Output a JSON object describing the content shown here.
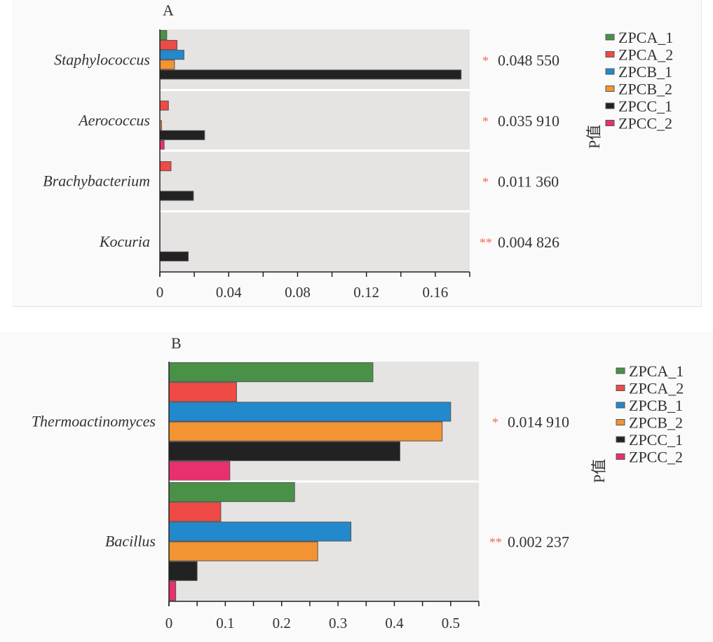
{
  "chart_data": [
    {
      "type": "bar",
      "orientation": "horizontal",
      "panel_label": "A",
      "categories": [
        "Staphylococcus",
        "Aerococcus",
        "Brachybacterium",
        "Kocuria"
      ],
      "series": [
        {
          "name": "ZPCA_1",
          "color": "#4a9148",
          "values": [
            0.004,
            0.0,
            0.0,
            0.0
          ]
        },
        {
          "name": "ZPCA_2",
          "color": "#ef4a45",
          "values": [
            0.01,
            0.005,
            0.0065,
            0.0
          ]
        },
        {
          "name": "ZPCB_1",
          "color": "#2389cd",
          "values": [
            0.014,
            0.0,
            0.0,
            0.0
          ]
        },
        {
          "name": "ZPCB_2",
          "color": "#f39432",
          "values": [
            0.0085,
            0.001,
            0.0,
            0.0
          ]
        },
        {
          "name": "ZPCC_1",
          "color": "#222222",
          "values": [
            0.175,
            0.026,
            0.0195,
            0.0165
          ]
        },
        {
          "name": "ZPCC_2",
          "color": "#e8306e",
          "values": [
            0.0,
            0.0025,
            0.0,
            0.0
          ]
        }
      ],
      "p_values": [
        {
          "stars": "*",
          "value": "0.048 550"
        },
        {
          "stars": "*",
          "value": "0.035 910"
        },
        {
          "stars": "*",
          "value": "0.011 360"
        },
        {
          "stars": "**",
          "value": "0.004 826"
        }
      ],
      "p_axis_title": "P值",
      "xlim": [
        0,
        0.18
      ],
      "xticks": [
        0,
        0.02,
        0.04,
        0.06,
        0.08,
        0.1,
        0.12,
        0.14,
        0.16,
        0.18
      ],
      "xtick_labels": [
        "0",
        "",
        "0.04",
        "",
        "0.08",
        "",
        "0.12",
        "",
        "0.16",
        ""
      ],
      "legend_position": "right",
      "grid": false
    },
    {
      "type": "bar",
      "orientation": "horizontal",
      "panel_label": "B",
      "categories": [
        "Thermoactinomyces",
        "Bacillus"
      ],
      "series": [
        {
          "name": "ZPCA_1",
          "color": "#4a9148",
          "values": [
            0.362,
            0.223
          ]
        },
        {
          "name": "ZPCA_2",
          "color": "#ef4a45",
          "values": [
            0.12,
            0.092
          ]
        },
        {
          "name": "ZPCB_1",
          "color": "#2389cd",
          "values": [
            0.5,
            0.323
          ]
        },
        {
          "name": "ZPCB_2",
          "color": "#f39432",
          "values": [
            0.485,
            0.264
          ]
        },
        {
          "name": "ZPCC_1",
          "color": "#222222",
          "values": [
            0.41,
            0.05
          ]
        },
        {
          "name": "ZPCC_2",
          "color": "#e8306e",
          "values": [
            0.108,
            0.012
          ]
        }
      ],
      "p_values": [
        {
          "stars": "*",
          "value": "0.014 910"
        },
        {
          "stars": "**",
          "value": "0.002 237"
        }
      ],
      "p_axis_title": "P值",
      "xlim": [
        0,
        0.55
      ],
      "xticks": [
        0,
        0.05,
        0.1,
        0.15,
        0.2,
        0.25,
        0.3,
        0.35,
        0.4,
        0.45,
        0.5,
        0.55
      ],
      "xtick_labels": [
        "0",
        "",
        "0.1",
        "",
        "0.2",
        "",
        "0.3",
        "",
        "0.4",
        "",
        "0.5",
        ""
      ],
      "legend_position": "right",
      "grid": false
    }
  ]
}
